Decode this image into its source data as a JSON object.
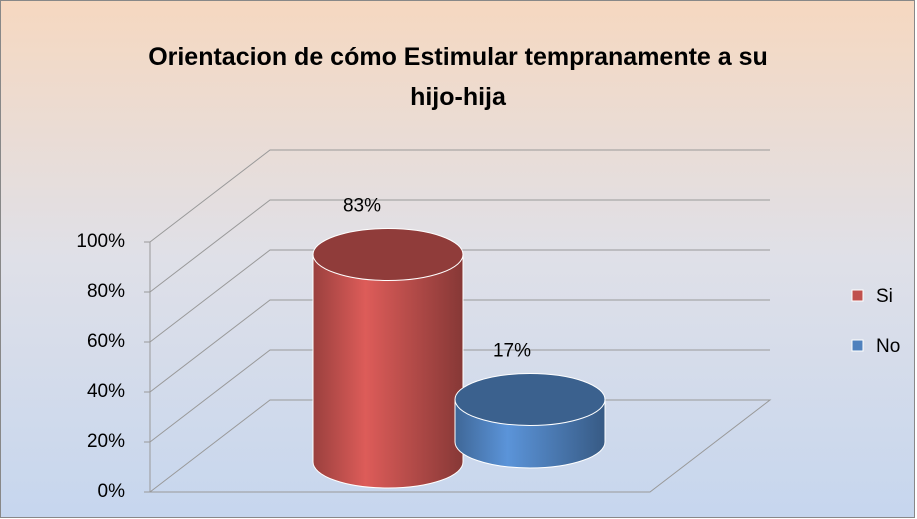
{
  "chart_data": {
    "type": "cylinder",
    "title": "Orientacion de cómo Estimular tempranamente a su hijo-hija",
    "categories": [
      null
    ],
    "series": [
      {
        "name": "Si",
        "color": "#c0504d",
        "values": [
          83
        ],
        "value_labels": [
          "83%"
        ]
      },
      {
        "name": "No",
        "color": "#4f81bd",
        "values": [
          17
        ],
        "value_labels": [
          "17%"
        ]
      }
    ],
    "ylim": [
      0,
      100
    ],
    "yticks": [
      {
        "value": 0,
        "label": "0%"
      },
      {
        "value": 20,
        "label": "20%"
      },
      {
        "value": 40,
        "label": "40%"
      },
      {
        "value": 60,
        "label": "60%"
      },
      {
        "value": 80,
        "label": "80%"
      },
      {
        "value": 100,
        "label": "100%"
      }
    ],
    "grid": true,
    "legend": "right"
  }
}
